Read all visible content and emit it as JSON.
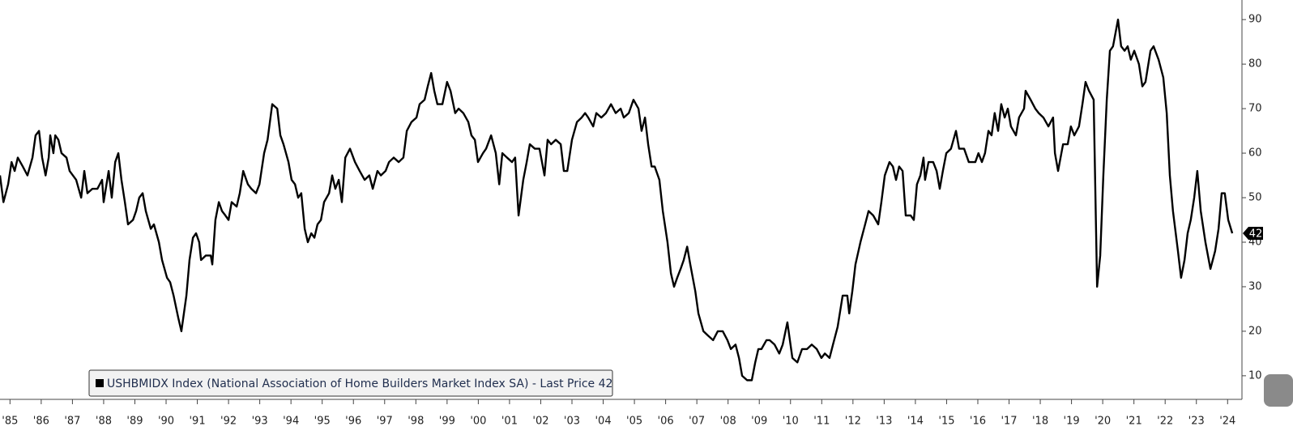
{
  "chart_data": {
    "type": "line",
    "x": [
      1985.18,
      1985.29,
      1985.44,
      1985.55,
      1985.65,
      1985.75,
      1985.91,
      1986.06,
      1986.22,
      1986.32,
      1986.43,
      1986.53,
      1986.64,
      1986.74,
      1986.79,
      1986.89,
      1986.95,
      1987.05,
      1987.15,
      1987.31,
      1987.41,
      1987.62,
      1987.78,
      1987.88,
      1987.98,
      1988.14,
      1988.3,
      1988.45,
      1988.5,
      1988.66,
      1988.76,
      1988.87,
      1988.97,
      1989.07,
      1989.18,
      1989.28,
      1989.44,
      1989.54,
      1989.64,
      1989.75,
      1989.85,
      1990.01,
      1990.11,
      1990.27,
      1990.37,
      1990.53,
      1990.63,
      1990.74,
      1990.89,
      1990.99,
      1991.15,
      1991.25,
      1991.36,
      1991.46,
      1991.56,
      1991.62,
      1991.77,
      1991.93,
      1991.98,
      1992.08,
      1992.19,
      1992.29,
      1992.4,
      1992.5,
      1992.6,
      1992.76,
      1992.86,
      1992.97,
      1993.12,
      1993.23,
      1993.38,
      1993.49,
      1993.64,
      1993.75,
      1993.9,
      1994.06,
      1994.16,
      1994.26,
      1994.42,
      1994.52,
      1994.63,
      1994.73,
      1994.83,
      1994.94,
      1995.04,
      1995.15,
      1995.25,
      1995.35,
      1995.46,
      1995.56,
      1995.72,
      1995.82,
      1995.92,
      1996.03,
      1996.13,
      1996.24,
      1996.39,
      1996.55,
      1996.7,
      1996.86,
      1997.01,
      1997.12,
      1997.27,
      1997.38,
      1997.53,
      1997.64,
      1997.79,
      1997.95,
      1998.1,
      1998.21,
      1998.36,
      1998.52,
      1998.62,
      1998.78,
      1998.88,
      1998.99,
      1999.09,
      1999.19,
      1999.35,
      1999.5,
      1999.61,
      1999.76,
      1999.87,
      2000.02,
      2000.18,
      2000.28,
      2000.39,
      2000.49,
      2000.65,
      2000.75,
      2000.91,
      2001.06,
      2001.17,
      2001.27,
      2001.42,
      2001.58,
      2001.68,
      2001.79,
      2001.94,
      2002.05,
      2002.15,
      2002.31,
      2002.46,
      2002.62,
      2002.72,
      2002.83,
      2002.98,
      2003.14,
      2003.24,
      2003.35,
      2003.5,
      2003.66,
      2003.81,
      2003.92,
      2004.02,
      2004.18,
      2004.28,
      2004.44,
      2004.59,
      2004.75,
      2004.9,
      2005.06,
      2005.16,
      2005.32,
      2005.47,
      2005.63,
      2005.73,
      2005.84,
      2005.94,
      2006.05,
      2006.15,
      2006.3,
      2006.41,
      2006.56,
      2006.67,
      2006.77,
      2006.87,
      2006.98,
      2007.08,
      2007.19,
      2007.29,
      2007.45,
      2007.55,
      2007.71,
      2007.86,
      2008.02,
      2008.17,
      2008.33,
      2008.48,
      2008.59,
      2008.74,
      2008.85,
      2008.95,
      2009.11,
      2009.26,
      2009.37,
      2009.47,
      2009.57,
      2009.73,
      2009.83,
      2009.99,
      2010.14,
      2010.25,
      2010.4,
      2010.56,
      2010.72,
      2010.87,
      2011.03,
      2011.18,
      2011.34,
      2011.49,
      2011.6,
      2011.75,
      2011.86,
      2012.01,
      2012.17,
      2012.32,
      2012.38,
      2012.48,
      2012.58,
      2012.74,
      2012.89,
      2013.0,
      2013.15,
      2013.31,
      2013.41,
      2013.52,
      2013.67,
      2013.78,
      2013.88,
      2013.98,
      2014.09,
      2014.19,
      2014.35,
      2014.45,
      2014.55,
      2014.66,
      2014.76,
      2014.81,
      2014.92,
      2015.07,
      2015.18,
      2015.28,
      2015.38,
      2015.49,
      2015.64,
      2015.8,
      2015.9,
      2016.06,
      2016.21,
      2016.42,
      2016.52,
      2016.63,
      2016.73,
      2016.84,
      2016.94,
      2017.04,
      2017.15,
      2017.25,
      2017.36,
      2017.46,
      2017.56,
      2017.72,
      2017.82,
      2017.98,
      2018.03,
      2018.19,
      2018.34,
      2018.45,
      2018.6,
      2018.76,
      2018.91,
      2018.97,
      2019.07,
      2019.23,
      2019.38,
      2019.48,
      2019.59,
      2019.74,
      2019.85,
      2019.95,
      2020.06,
      2020.21,
      2020.32,
      2020.42,
      2020.52,
      2020.63,
      2020.73,
      2020.83,
      2020.99,
      2021.09,
      2021.2,
      2021.3,
      2021.4,
      2021.51,
      2021.66,
      2021.77,
      2021.87,
      2022.03,
      2022.13,
      2022.29,
      2022.44,
      2022.55,
      2022.65,
      2022.75,
      2022.91,
      2023.01,
      2023.12,
      2023.22,
      2023.32,
      2023.43,
      2023.53,
      2023.64,
      2023.79,
      2023.95,
      2024.1,
      2024.21,
      2024.31,
      2024.41,
      2024.52,
      2024.65
    ],
    "series": [
      {
        "name": "USHBMIDX Index (National Association of Home Builders Market Index SA) - Last Price 42",
        "color": "#000000",
        "values": [
          55,
          49,
          53,
          58,
          56,
          59,
          57,
          55,
          59,
          64,
          65,
          59,
          55,
          59,
          64,
          60,
          64,
          63,
          60,
          59,
          56,
          54,
          50,
          56,
          51,
          52,
          52,
          54,
          49,
          56,
          50,
          58,
          60,
          54,
          49,
          44,
          45,
          47,
          50,
          51,
          47,
          43,
          44,
          40,
          36,
          32,
          31,
          28,
          23,
          20,
          28,
          36,
          41,
          42,
          40,
          36,
          37,
          37,
          35,
          45,
          49,
          47,
          46,
          45,
          49,
          48,
          51,
          56,
          53,
          52,
          51,
          53,
          60,
          63,
          71,
          70,
          64,
          62,
          58,
          54,
          53,
          50,
          51,
          43,
          40,
          42,
          41,
          44,
          45,
          49,
          51,
          55,
          52,
          54,
          49,
          59,
          61,
          58,
          56,
          54,
          55,
          52,
          56,
          55,
          56,
          58,
          59,
          58,
          59,
          65,
          67,
          68,
          71,
          72,
          75,
          78,
          74,
          71,
          71,
          76,
          74,
          69,
          70,
          69,
          67,
          64,
          63,
          58,
          60,
          61,
          64,
          60,
          53,
          60,
          59,
          58,
          59,
          46,
          54,
          58,
          62,
          61,
          61,
          55,
          63,
          62,
          63,
          62,
          56,
          56,
          63,
          67,
          68,
          69,
          68,
          66,
          69,
          68,
          69,
          71,
          69,
          70,
          68,
          69,
          72,
          70,
          65,
          68,
          62,
          57,
          57,
          54,
          47,
          40,
          33,
          30,
          32,
          34,
          36,
          39,
          35,
          29,
          24,
          20,
          19,
          18,
          20,
          20,
          18,
          16,
          17,
          14,
          10,
          9,
          9,
          13,
          16,
          16,
          18,
          18,
          17,
          15,
          17,
          22,
          14,
          13,
          16,
          16,
          17,
          16,
          14,
          15,
          14,
          17,
          21,
          28,
          28,
          24,
          29,
          35,
          40,
          44,
          47,
          46,
          44,
          49,
          55,
          58,
          57,
          54,
          57,
          56,
          46,
          46,
          45,
          53,
          55,
          59,
          54,
          58,
          58,
          56,
          52,
          56,
          60,
          61,
          65,
          61,
          61,
          58,
          58,
          60,
          58,
          60,
          65,
          64,
          69,
          65,
          71,
          68,
          70,
          66,
          64,
          68,
          70,
          74,
          72,
          70,
          69,
          68,
          66,
          68,
          60,
          56,
          62,
          62,
          66,
          64,
          66,
          71,
          76,
          74,
          72,
          30,
          37,
          55,
          72,
          83,
          84,
          90,
          84,
          83,
          84,
          81,
          83,
          80,
          75,
          76,
          83,
          84,
          81,
          77,
          69,
          55,
          47,
          38,
          32,
          36,
          42,
          45,
          50,
          56,
          47,
          40,
          34,
          38,
          43,
          51,
          51,
          45,
          42
        ]
      }
    ],
    "xlim": [
      1985.18,
      2024.96
    ],
    "xticks": [
      {
        "value": 1985.5,
        "label": "'85"
      },
      {
        "value": 1986.5,
        "label": "'86"
      },
      {
        "value": 1987.5,
        "label": "'87"
      },
      {
        "value": 1988.5,
        "label": "'88"
      },
      {
        "value": 1989.5,
        "label": "'89"
      },
      {
        "value": 1990.5,
        "label": "'90"
      },
      {
        "value": 1991.5,
        "label": "'91"
      },
      {
        "value": 1992.5,
        "label": "'92"
      },
      {
        "value": 1993.5,
        "label": "'93"
      },
      {
        "value": 1994.5,
        "label": "'94"
      },
      {
        "value": 1995.5,
        "label": "'95"
      },
      {
        "value": 1996.5,
        "label": "'96"
      },
      {
        "value": 1997.5,
        "label": "'97"
      },
      {
        "value": 1998.5,
        "label": "'98"
      },
      {
        "value": 1999.5,
        "label": "'99"
      },
      {
        "value": 2000.5,
        "label": "'00"
      },
      {
        "value": 2001.5,
        "label": "'01"
      },
      {
        "value": 2002.5,
        "label": "'02"
      },
      {
        "value": 2003.5,
        "label": "'03"
      },
      {
        "value": 2004.5,
        "label": "'04"
      },
      {
        "value": 2005.5,
        "label": "'05"
      },
      {
        "value": 2006.5,
        "label": "'06"
      },
      {
        "value": 2007.5,
        "label": "'07"
      },
      {
        "value": 2008.5,
        "label": "'08"
      },
      {
        "value": 2009.5,
        "label": "'09"
      },
      {
        "value": 2010.5,
        "label": "'10"
      },
      {
        "value": 2011.5,
        "label": "'11"
      },
      {
        "value": 2012.5,
        "label": "'12"
      },
      {
        "value": 2013.5,
        "label": "'13"
      },
      {
        "value": 2014.5,
        "label": "'14"
      },
      {
        "value": 2015.5,
        "label": "'15"
      },
      {
        "value": 2016.5,
        "label": "'16"
      },
      {
        "value": 2017.5,
        "label": "'17"
      },
      {
        "value": 2018.5,
        "label": "'18"
      },
      {
        "value": 2019.5,
        "label": "'19"
      },
      {
        "value": 2020.5,
        "label": "'20"
      },
      {
        "value": 2021.5,
        "label": "'21"
      },
      {
        "value": 2022.5,
        "label": "'22"
      },
      {
        "value": 2023.5,
        "label": "'23"
      },
      {
        "value": 2024.5,
        "label": "'24"
      }
    ],
    "ylim": [
      4.7,
      94.4
    ],
    "yticks": [
      10,
      20,
      30,
      40,
      50,
      60,
      70,
      80,
      90
    ]
  }
}
